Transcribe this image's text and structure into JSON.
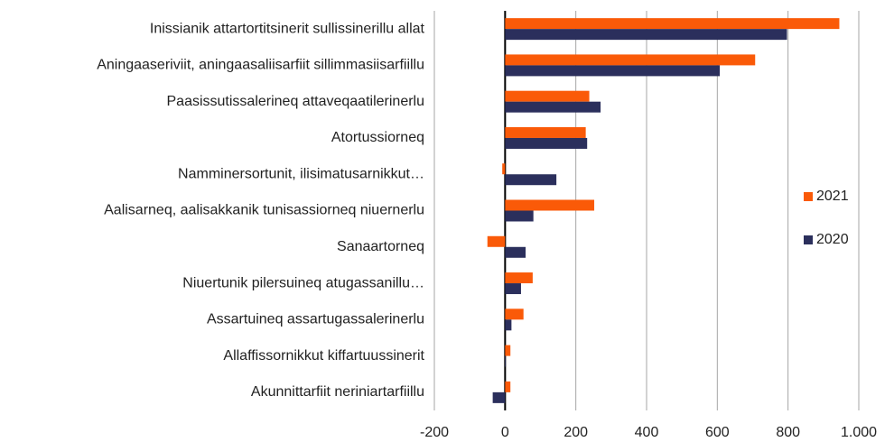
{
  "chart_data": {
    "type": "hbar",
    "categories": [
      "Inissianik attartortitsinerit sullissinerillu allat",
      "Aningaaseriviit, aningaasaliisarfiit sillimmasiisarfiillu",
      "Paasissutissalerineq attaveqaatilerinerlu",
      "Atortussiorneq",
      "Namminersortunit, ilisimatusarnikkut…",
      "Aalisarneq, aalisakkanik tunisassiorneq niuernerlu",
      "Sanaartorneq",
      "Niuertunik pilersuineq atugassanillu…",
      "Assartuineq assartugassalerinerlu",
      "Allaffissornikkut kiffartuussinerit",
      "Akunnittarfiit neriniartarfiillu"
    ],
    "series": [
      {
        "name": "2021",
        "color": "#fa5a08",
        "values": [
          945,
          707,
          238,
          228,
          -8,
          252,
          -50,
          78,
          52,
          15,
          15
        ]
      },
      {
        "name": "2020",
        "color": "#2b2f5c",
        "values": [
          797,
          607,
          270,
          232,
          145,
          80,
          58,
          45,
          18,
          2,
          -35
        ]
      }
    ],
    "xlim": [
      -200,
      1000
    ],
    "xticks": [
      -200,
      0,
      200,
      400,
      600,
      800,
      {
        "value": 1000,
        "label": "1.000"
      }
    ],
    "grid": true,
    "legend": "right"
  }
}
